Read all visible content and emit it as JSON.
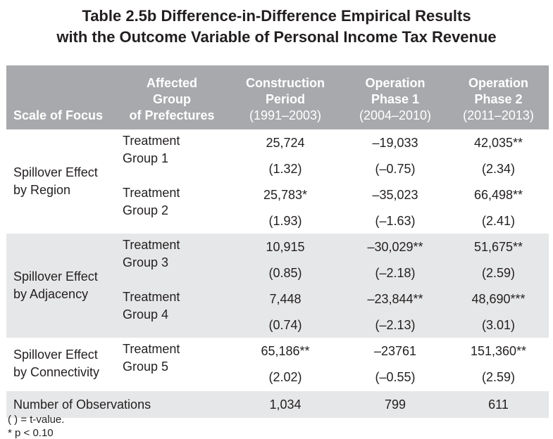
{
  "title": {
    "line1": "Table 2.5b  Difference-in-Difference Empirical Results",
    "line2": "with the Outcome Variable of Personal Income Tax Revenue"
  },
  "header": {
    "scale": "Scale of Focus",
    "group": [
      "Affected",
      "Group",
      "of Prefectures"
    ],
    "construction": [
      "Construction",
      "Period",
      "(1991–2003)"
    ],
    "op1": [
      "Operation",
      "Phase 1",
      "(2004–2010)"
    ],
    "op2": [
      "Operation",
      "Phase 2",
      "(2011–2013)"
    ]
  },
  "sections": [
    {
      "scale": [
        "Spillover Effect",
        "by Region"
      ],
      "shaded": false,
      "groups": [
        {
          "label": [
            "Treatment",
            "Group 1"
          ],
          "coef": [
            "25,724",
            "–19,033",
            "42,035**"
          ],
          "t": [
            "(1.32)",
            "(–0.75)",
            "(2.34)"
          ]
        },
        {
          "label": [
            "Treatment",
            "Group 2"
          ],
          "coef": [
            "25,783*",
            "–35,023",
            "66,498**"
          ],
          "t": [
            "(1.93)",
            "(–1.63)",
            "(2.41)"
          ]
        }
      ]
    },
    {
      "scale": [
        "Spillover Effect",
        "by Adjacency"
      ],
      "shaded": true,
      "groups": [
        {
          "label": [
            "Treatment",
            "Group 3"
          ],
          "coef": [
            "10,915",
            "–30,029**",
            "51,675**"
          ],
          "t": [
            "(0.85)",
            "(–2.18)",
            "(2.59)"
          ]
        },
        {
          "label": [
            "Treatment",
            "Group 4"
          ],
          "coef": [
            "7,448",
            "–23,844**",
            "48,690***"
          ],
          "t": [
            "(0.74)",
            "(–2.13)",
            "(3.01)"
          ]
        }
      ]
    },
    {
      "scale": [
        "Spillover Effect",
        "by Connectivity"
      ],
      "shaded": false,
      "groups": [
        {
          "label": [
            "Treatment",
            "Group 5"
          ],
          "coef": [
            "65,186**",
            "–23761",
            "151,360**"
          ],
          "t": [
            "(2.02)",
            "(–0.55)",
            "(2.59)"
          ]
        }
      ]
    }
  ],
  "observations": {
    "label": "Number of Observations",
    "values": [
      "1,034",
      "799",
      "611"
    ]
  },
  "footnotes": {
    "line1": "( ) = t-value.",
    "line2": "* p < 0.10"
  }
}
